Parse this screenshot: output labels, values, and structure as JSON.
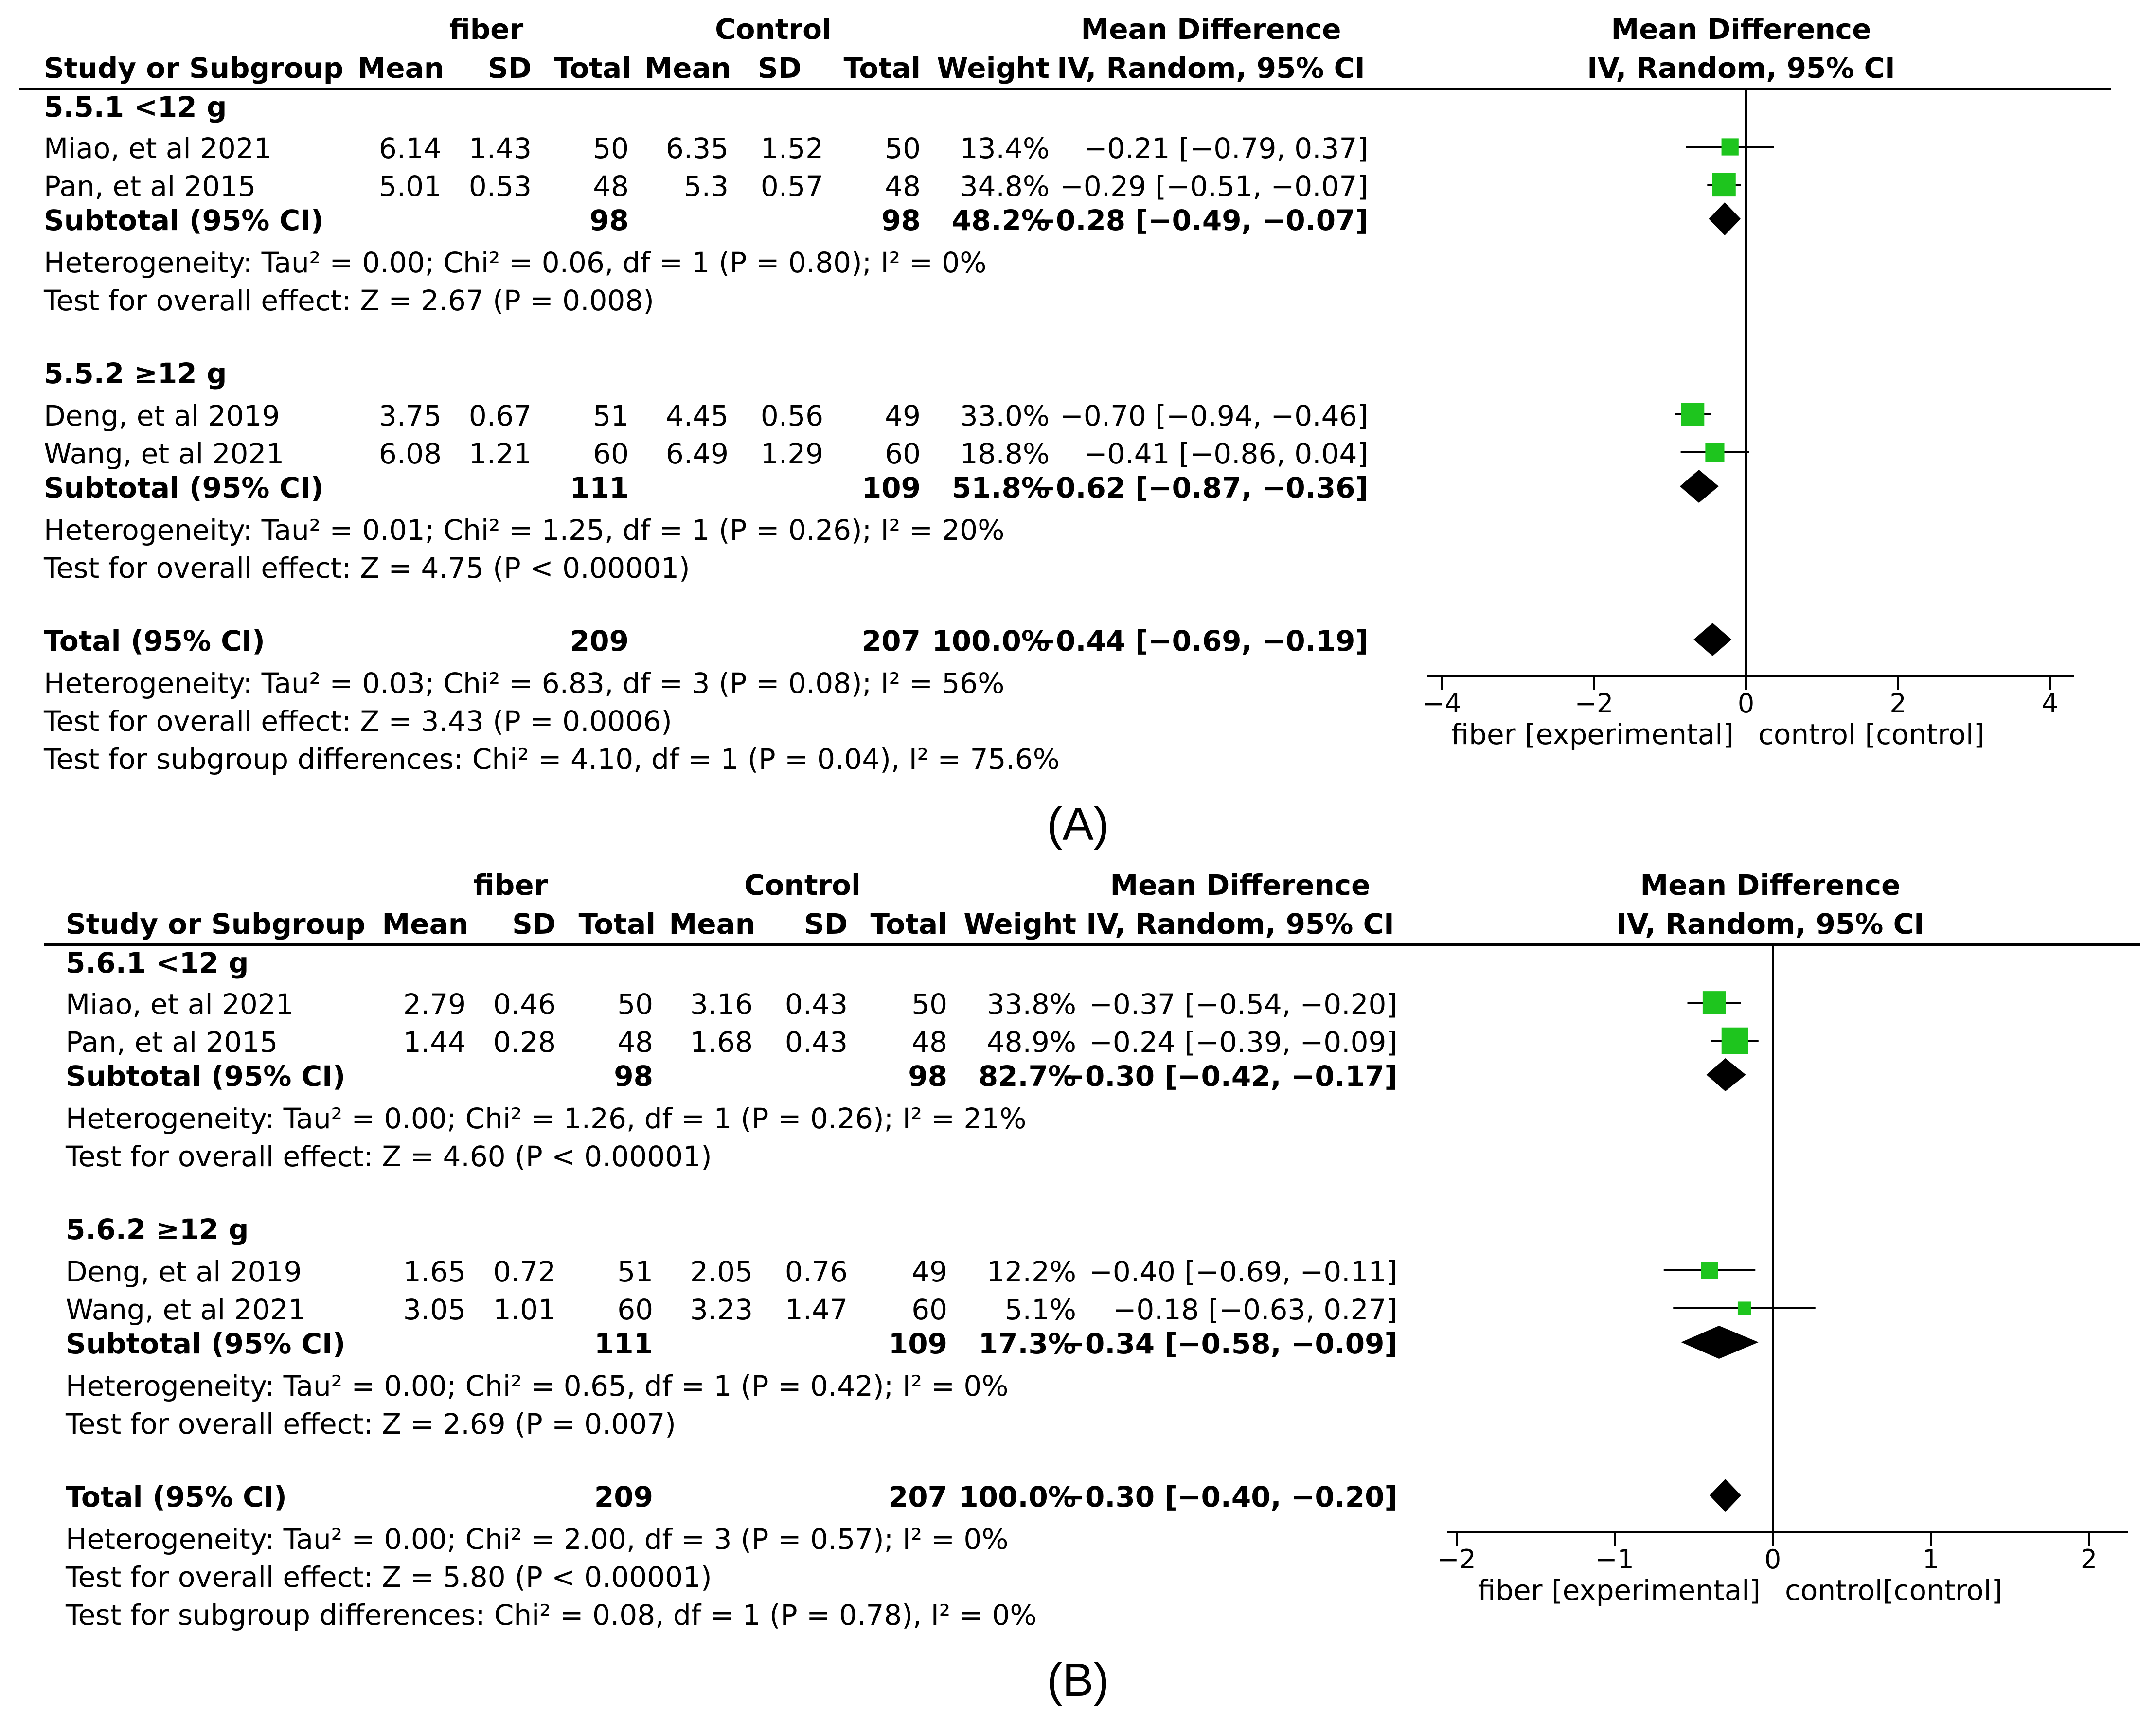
{
  "panels": [
    {
      "label": "(A)",
      "columns": {
        "study": "Study or Subgroup",
        "exp_group": "fiber",
        "ctl_group": "Control",
        "mean": "Mean",
        "sd": "SD",
        "total": "Total",
        "weight": "Weight",
        "md_title": "Mean Difference",
        "md_sub": "IV, Random, 95% CI"
      },
      "subgroups": [
        {
          "title": "5.5.1 <12 g",
          "studies": [
            {
              "name": "Miao,  et al 2021",
              "exp_mean": "6.14",
              "exp_sd": "1.43",
              "exp_total": "50",
              "ctl_mean": "6.35",
              "ctl_sd": "1.52",
              "ctl_total": "50",
              "weight": "13.4%",
              "ci": "−0.21 [−0.79, 0.37]"
            },
            {
              "name": "Pan,  et al 2015",
              "exp_mean": "5.01",
              "exp_sd": "0.53",
              "exp_total": "48",
              "ctl_mean": "5.3",
              "ctl_sd": "0.57",
              "ctl_total": "48",
              "weight": "34.8%",
              "ci": "−0.29 [−0.51, −0.07]"
            }
          ],
          "subtotal": {
            "label": "Subtotal (95% CI)",
            "exp_total": "98",
            "ctl_total": "98",
            "weight": "48.2%",
            "ci": "−0.28 [−0.49, −0.07]"
          },
          "heterogeneity": "Heterogeneity: Tau² = 0.00; Chi² = 0.06, df = 1 (P = 0.80); I² = 0%",
          "overall": "Test for overall effect: Z = 2.67 (P = 0.008)"
        },
        {
          "title": "5.5.2 ≥12 g",
          "studies": [
            {
              "name": "Deng,  et al 2019",
              "exp_mean": "3.75",
              "exp_sd": "0.67",
              "exp_total": "51",
              "ctl_mean": "4.45",
              "ctl_sd": "0.56",
              "ctl_total": "49",
              "weight": "33.0%",
              "ci": "−0.70 [−0.94, −0.46]"
            },
            {
              "name": "Wang,  et al 2021",
              "exp_mean": "6.08",
              "exp_sd": "1.21",
              "exp_total": "60",
              "ctl_mean": "6.49",
              "ctl_sd": "1.29",
              "ctl_total": "60",
              "weight": "18.8%",
              "ci": "−0.41 [−0.86, 0.04]"
            }
          ],
          "subtotal": {
            "label": "Subtotal (95% CI)",
            "exp_total": "111",
            "ctl_total": "109",
            "weight": "51.8%",
            "ci": "−0.62 [−0.87, −0.36]"
          },
          "heterogeneity": "Heterogeneity: Tau² = 0.01; Chi² = 1.25, df = 1 (P = 0.26); I² = 20%",
          "overall": "Test for overall effect: Z = 4.75 (P < 0.00001)"
        }
      ],
      "total": {
        "label": "Total (95% CI)",
        "exp_total": "209",
        "ctl_total": "207",
        "weight": "100.0%",
        "ci": "−0.44 [−0.69, −0.19]"
      },
      "total_heterogeneity": "Heterogeneity: Tau² = 0.03; Chi² = 6.83, df = 3 (P = 0.08); I² = 56%",
      "total_overall": "Test for overall effect: Z = 3.43 (P = 0.0006)",
      "subgroup_diff": "Test for subgroup differences: Chi² = 4.10, df = 1 (P = 0.04), I² = 75.6%",
      "axis": {
        "ticks": [
          "−4",
          "−2",
          "0",
          "2",
          "4"
        ],
        "left_label": "fiber [experimental]",
        "right_label": "control [control]"
      }
    },
    {
      "label": "(B)",
      "columns": {
        "study": "Study or Subgroup",
        "exp_group": "fiber",
        "ctl_group": "Control",
        "mean": "Mean",
        "sd": "SD",
        "total": "Total",
        "weight": "Weight",
        "md_title": "Mean Difference",
        "md_sub": "IV, Random, 95% CI"
      },
      "subgroups": [
        {
          "title": "5.6.1 <12 g",
          "studies": [
            {
              "name": "Miao,  et al 2021",
              "exp_mean": "2.79",
              "exp_sd": "0.46",
              "exp_total": "50",
              "ctl_mean": "3.16",
              "ctl_sd": "0.43",
              "ctl_total": "50",
              "weight": "33.8%",
              "ci": "−0.37 [−0.54, −0.20]"
            },
            {
              "name": "Pan,  et al 2015",
              "exp_mean": "1.44",
              "exp_sd": "0.28",
              "exp_total": "48",
              "ctl_mean": "1.68",
              "ctl_sd": "0.43",
              "ctl_total": "48",
              "weight": "48.9%",
              "ci": "−0.24 [−0.39, −0.09]"
            }
          ],
          "subtotal": {
            "label": "Subtotal (95% CI)",
            "exp_total": "98",
            "ctl_total": "98",
            "weight": "82.7%",
            "ci": "−0.30 [−0.42, −0.17]"
          },
          "heterogeneity": "Heterogeneity: Tau² = 0.00; Chi² = 1.26, df = 1 (P = 0.26); I² = 21%",
          "overall": "Test for overall effect: Z = 4.60 (P < 0.00001)"
        },
        {
          "title": "5.6.2 ≥12 g",
          "studies": [
            {
              "name": "Deng,  et al 2019",
              "exp_mean": "1.65",
              "exp_sd": "0.72",
              "exp_total": "51",
              "ctl_mean": "2.05",
              "ctl_sd": "0.76",
              "ctl_total": "49",
              "weight": "12.2%",
              "ci": "−0.40 [−0.69, −0.11]"
            },
            {
              "name": "Wang,  et al 2021",
              "exp_mean": "3.05",
              "exp_sd": "1.01",
              "exp_total": "60",
              "ctl_mean": "3.23",
              "ctl_sd": "1.47",
              "ctl_total": "60",
              "weight": "5.1%",
              "ci": "−0.18 [−0.63, 0.27]"
            }
          ],
          "subtotal": {
            "label": "Subtotal (95% CI)",
            "exp_total": "111",
            "ctl_total": "109",
            "weight": "17.3%",
            "ci": "−0.34 [−0.58, −0.09]"
          },
          "heterogeneity": "Heterogeneity: Tau² = 0.00; Chi² = 0.65, df = 1 (P = 0.42); I² = 0%",
          "overall": "Test for overall effect: Z = 2.69 (P = 0.007)"
        }
      ],
      "total": {
        "label": "Total (95% CI)",
        "exp_total": "209",
        "ctl_total": "207",
        "weight": "100.0%",
        "ci": "−0.30 [−0.40, −0.20]"
      },
      "total_heterogeneity": "Heterogeneity: Tau² = 0.00; Chi² = 2.00, df = 3 (P = 0.57); I² = 0%",
      "total_overall": "Test for overall effect: Z = 5.80 (P < 0.00001)",
      "subgroup_diff": "Test for subgroup differences: Chi² = 0.08, df = 1 (P = 0.78), I² = 0%",
      "axis": {
        "ticks": [
          "−2",
          "−1",
          "0",
          "1",
          "2"
        ],
        "left_label": "fiber [experimental]",
        "right_label": "control[control]"
      }
    }
  ],
  "colors": {
    "study_marker": "#1ec51e",
    "pooled_diamond": "#000000",
    "line": "#000000"
  },
  "chart_data": [
    {
      "type": "forest",
      "title": "(A)",
      "xlabel": "fiber [experimental]   control [control]",
      "xlim": [
        -4,
        4
      ],
      "xticks": [
        -4,
        -2,
        0,
        2,
        4
      ],
      "rows": [
        {
          "label": "Miao,  et al 2021",
          "kind": "study",
          "md": -0.21,
          "lo": -0.79,
          "hi": 0.37,
          "weight": 13.4
        },
        {
          "label": "Pan,  et al 2015",
          "kind": "study",
          "md": -0.29,
          "lo": -0.51,
          "hi": -0.07,
          "weight": 34.8
        },
        {
          "label": "Subtotal 5.5.1 <12 g",
          "kind": "pooled",
          "md": -0.28,
          "lo": -0.49,
          "hi": -0.07,
          "weight": 48.2
        },
        {
          "label": "Deng,  et al 2019",
          "kind": "study",
          "md": -0.7,
          "lo": -0.94,
          "hi": -0.46,
          "weight": 33.0
        },
        {
          "label": "Wang,  et al 2021",
          "kind": "study",
          "md": -0.41,
          "lo": -0.86,
          "hi": 0.04,
          "weight": 18.8
        },
        {
          "label": "Subtotal 5.5.2 ≥12 g",
          "kind": "pooled",
          "md": -0.62,
          "lo": -0.87,
          "hi": -0.36,
          "weight": 51.8
        },
        {
          "label": "Total (95% CI)",
          "kind": "pooled",
          "md": -0.44,
          "lo": -0.69,
          "hi": -0.19,
          "weight": 100.0
        }
      ]
    },
    {
      "type": "forest",
      "title": "(B)",
      "xlabel": "fiber [experimental]   control[control]",
      "xlim": [
        -2,
        2
      ],
      "xticks": [
        -2,
        -1,
        0,
        1,
        2
      ],
      "rows": [
        {
          "label": "Miao,  et al 2021",
          "kind": "study",
          "md": -0.37,
          "lo": -0.54,
          "hi": -0.2,
          "weight": 33.8
        },
        {
          "label": "Pan,  et al 2015",
          "kind": "study",
          "md": -0.24,
          "lo": -0.39,
          "hi": -0.09,
          "weight": 48.9
        },
        {
          "label": "Subtotal 5.6.1 <12 g",
          "kind": "pooled",
          "md": -0.3,
          "lo": -0.42,
          "hi": -0.17,
          "weight": 82.7
        },
        {
          "label": "Deng,  et al 2019",
          "kind": "study",
          "md": -0.4,
          "lo": -0.69,
          "hi": -0.11,
          "weight": 12.2
        },
        {
          "label": "Wang,  et al 2021",
          "kind": "study",
          "md": -0.18,
          "lo": -0.63,
          "hi": 0.27,
          "weight": 5.1
        },
        {
          "label": "Subtotal 5.6.2 ≥12 g",
          "kind": "pooled",
          "md": -0.34,
          "lo": -0.58,
          "hi": -0.09,
          "weight": 17.3
        },
        {
          "label": "Total (95% CI)",
          "kind": "pooled",
          "md": -0.3,
          "lo": -0.4,
          "hi": -0.2,
          "weight": 100.0
        }
      ]
    }
  ]
}
